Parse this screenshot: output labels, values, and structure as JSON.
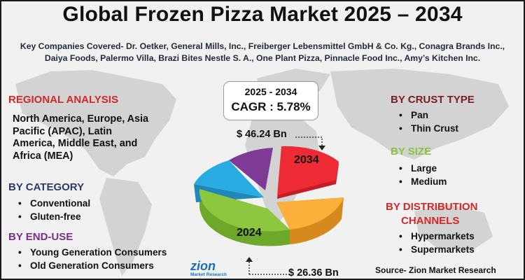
{
  "title": "Global Frozen Pizza Market 2025 – 2034",
  "companies": "Key Companies Covered- Dr. Oetker, General Mills, Inc., Freiberger Lebensmittel GmbH & Co. Kg., Conagra Brands Inc., Daiya Foods, Palermo Villa, Brazi Bites Nestle S. A., One Plant Pizza, Pinnacle Food Inc., Amy’s Kitchen Inc.",
  "regional": {
    "heading": "REGIONAL ANALYSIS",
    "text": "North America, Europe, Asia Pacific (APAC), Latin America, Middle East, and Africa (MEA)"
  },
  "category": {
    "heading": "BY CATEGORY",
    "items": [
      "Conventional",
      "Gluten-free"
    ]
  },
  "end_use": {
    "heading": "BY END-USE",
    "items": [
      "Young Generation Consumers",
      "Old Generation Consumers"
    ]
  },
  "crust": {
    "heading": "BY CRUST TYPE",
    "items": [
      "Pan",
      "Thin Crust"
    ]
  },
  "size": {
    "heading": "BY SIZE",
    "items": [
      "Large",
      "Medium"
    ]
  },
  "distribution": {
    "heading_line1": "BY DISTRIBUTION",
    "heading_line2": "CHANNELS",
    "items": [
      "Hypermarkets",
      "Supermarkets"
    ]
  },
  "cagr": {
    "range": "2025 - 2034",
    "value": "CAGR : 5.78%"
  },
  "values": {
    "end": "$ 46.24 Bn",
    "start": "$ 26.36 Bn"
  },
  "years": {
    "end": "2034",
    "start": "2024"
  },
  "pie_colors": {
    "red": "#ee2b34",
    "orange": "#fbb03b",
    "green": "#8dc63f",
    "blue": "#29abe2",
    "purple": "#7e3b96"
  },
  "logo": {
    "brand": "zion",
    "sub": "Market Research"
  },
  "source": "Source- Zion Market Research"
}
